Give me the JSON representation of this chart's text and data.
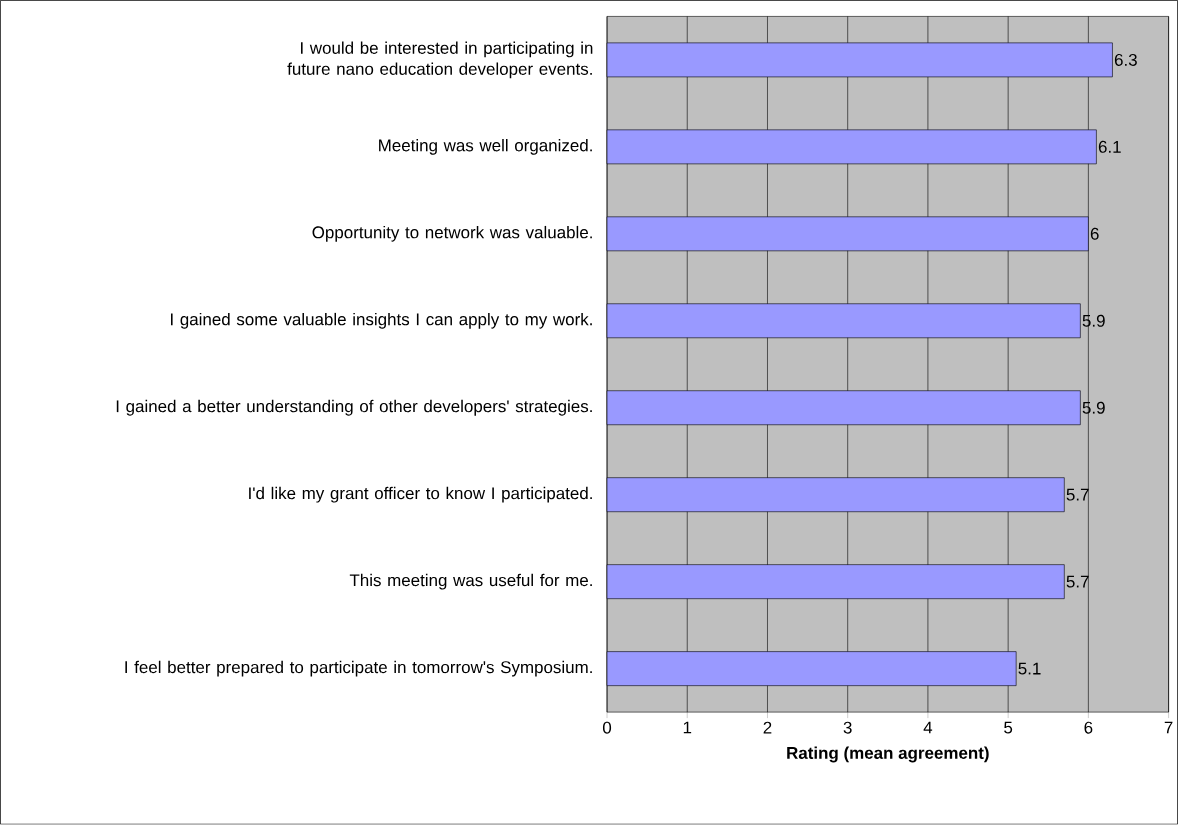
{
  "chart_data": {
    "type": "bar",
    "orientation": "horizontal",
    "xlabel": "Rating (mean agreement)",
    "categories": [
      "I would be interested in participating in future nano education developer events.",
      "Meeting was well organized.",
      "Opportunity to network was valuable.",
      "I gained some valuable insights I can apply to my work.",
      "I gained a better understanding of other developers' strategies.",
      "I'd like my grant officer to know I participated.",
      "This meeting was useful for me.",
      "I feel better prepared to participate in tomorrow's Symposium."
    ],
    "values": [
      6.3,
      6.1,
      6,
      5.9,
      5.9,
      5.7,
      5.7,
      5.1
    ],
    "color": "#9999ff",
    "xlim": [
      0,
      7
    ],
    "xticks": [
      0,
      1,
      2,
      3,
      4,
      5,
      6,
      7
    ],
    "grid": "x",
    "data_labels": true
  }
}
